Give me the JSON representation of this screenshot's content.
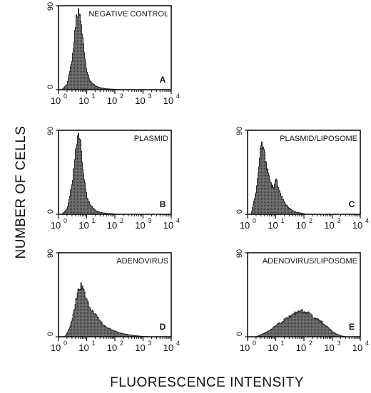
{
  "figure": {
    "y_axis_label": "NUMBER OF CELLS",
    "x_axis_label": "FLUORESCENCE INTENSITY"
  },
  "chart_data": [
    {
      "type": "area",
      "panel": "A",
      "title": "NEGATIVE CONTROL",
      "letter": "A",
      "xscale": "log",
      "xlim": [
        1,
        10000
      ],
      "ylim": [
        0,
        90
      ],
      "xticks": [
        1,
        10,
        100,
        1000,
        10000
      ],
      "yticks": [
        0,
        90
      ],
      "x": [
        1.3,
        2,
        3,
        4,
        5,
        6,
        7,
        8,
        10,
        13,
        20,
        30,
        50,
        100,
        200
      ],
      "y": [
        0,
        6,
        34,
        72,
        88,
        76,
        55,
        40,
        18,
        9,
        4,
        2,
        1,
        0.4,
        0
      ]
    },
    {
      "type": "area",
      "panel": "B",
      "title": "PLASMID",
      "letter": "B",
      "xscale": "log",
      "xlim": [
        1,
        10000
      ],
      "ylim": [
        0,
        90
      ],
      "xticks": [
        1,
        10,
        100,
        1000,
        10000
      ],
      "yticks": [
        0,
        90
      ],
      "x": [
        1.3,
        2,
        3,
        4,
        5,
        6,
        7,
        8,
        10,
        13,
        20,
        30,
        50,
        100,
        200
      ],
      "y": [
        0,
        6,
        34,
        68,
        88,
        74,
        52,
        36,
        18,
        10,
        4,
        2,
        1,
        0.4,
        0
      ]
    },
    {
      "type": "area",
      "panel": "C",
      "title": "PLASMID/LIPOSOME",
      "letter": "C",
      "xscale": "log",
      "xlim": [
        1,
        10000
      ],
      "ylim": [
        0,
        90
      ],
      "xticks": [
        1,
        10,
        100,
        1000,
        10000
      ],
      "yticks": [
        0,
        90
      ],
      "x": [
        1.3,
        2,
        2.5,
        3,
        4,
        5,
        6,
        8,
        10,
        12,
        15,
        20,
        30,
        50,
        100,
        200
      ],
      "y": [
        0,
        25,
        55,
        76,
        62,
        46,
        34,
        28,
        37,
        30,
        20,
        12,
        6,
        2.5,
        0.6,
        0
      ]
    },
    {
      "type": "area",
      "panel": "D",
      "title": "ADENOVIRUS",
      "letter": "D",
      "xscale": "log",
      "xlim": [
        1,
        10000
      ],
      "ylim": [
        0,
        90
      ],
      "xticks": [
        1,
        10,
        100,
        1000,
        10000
      ],
      "yticks": [
        0,
        90
      ],
      "x": [
        1.6,
        2,
        3,
        4,
        5,
        6,
        7,
        8,
        10,
        13,
        20,
        30,
        50,
        100,
        200,
        500,
        1000,
        2000
      ],
      "y": [
        0,
        4,
        18,
        38,
        50,
        55,
        52,
        46,
        39,
        30,
        24,
        16,
        10,
        6,
        3,
        1.2,
        0.4,
        0
      ]
    },
    {
      "type": "area",
      "panel": "E",
      "title": "ADENOVIRUS/LIPOSOME",
      "letter": "E",
      "xscale": "log",
      "xlim": [
        1,
        10000
      ],
      "ylim": [
        0,
        90
      ],
      "xticks": [
        1,
        10,
        100,
        1000,
        10000
      ],
      "yticks": [
        0,
        90
      ],
      "x": [
        2,
        4,
        7,
        10,
        20,
        40,
        60,
        80,
        100,
        150,
        200,
        300,
        500,
        800,
        1200,
        2000,
        3000
      ],
      "y": [
        0,
        4,
        8,
        12,
        18,
        24,
        27,
        28,
        26,
        25,
        21,
        19,
        14,
        8,
        4,
        1,
        0
      ]
    }
  ]
}
